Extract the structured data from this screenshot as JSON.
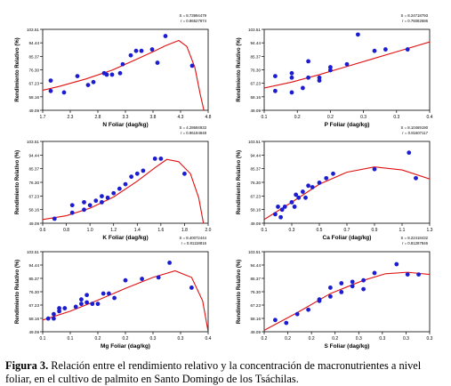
{
  "caption": {
    "label": "Figura 3.",
    "text": " Relación entre el rendimiento relativo y la concentración de macronutrientes a nivel foliar, en el cultivo de palmito en Santo Domingo de los Tsáchilas."
  },
  "colors": {
    "points": "#1c1cd0",
    "curve": "#e01010",
    "axes": "#000000"
  },
  "chart_data": [
    {
      "type": "scatter",
      "xlabel": "N Foliar (dag/kg)",
      "ylabel": "Rendimiento Relativo (%)",
      "stats": [
        "S = 8.73994479",
        "r = 0.86527874"
      ],
      "xlim": [
        1.7,
        4.8
      ],
      "xticks": [
        "1.7",
        "2.3",
        "2.8",
        "3.3",
        "3.8",
        "4.3",
        "4.8"
      ],
      "ylim": [
        49.0,
        103.5
      ],
      "yticks": [
        "49.09",
        "58.16",
        "67.23",
        "76.30",
        "85.37",
        "94.44",
        "103.51"
      ],
      "points": [
        [
          1.85,
          62
        ],
        [
          1.85,
          69
        ],
        [
          2.1,
          61
        ],
        [
          2.35,
          72
        ],
        [
          2.55,
          66
        ],
        [
          2.65,
          68
        ],
        [
          2.85,
          74
        ],
        [
          2.9,
          73
        ],
        [
          3.0,
          73
        ],
        [
          3.15,
          74
        ],
        [
          3.2,
          80
        ],
        [
          3.35,
          86
        ],
        [
          3.45,
          89
        ],
        [
          3.55,
          89
        ],
        [
          3.75,
          90
        ],
        [
          3.85,
          81
        ],
        [
          4.0,
          99
        ],
        [
          4.5,
          79
        ]
      ],
      "curve": [
        [
          1.7,
          62.5
        ],
        [
          2.0,
          65
        ],
        [
          2.5,
          70
        ],
        [
          3.0,
          76
        ],
        [
          3.5,
          84
        ],
        [
          3.8,
          89
        ],
        [
          4.0,
          92.5
        ],
        [
          4.25,
          96
        ],
        [
          4.4,
          92
        ],
        [
          4.55,
          78
        ],
        [
          4.65,
          60
        ],
        [
          4.72,
          49
        ]
      ]
    },
    {
      "type": "scatter",
      "xlabel": "P Foliar (dag/kg)",
      "ylabel": "Rendimiento Relativo (%)",
      "stats": [
        "S = 8.24718793",
        "r = 0.76082686"
      ],
      "xlim": [
        0.1,
        0.4
      ],
      "xticks": [
        "0.1",
        "0.2",
        "0.2",
        "0.3",
        "0.3",
        "0.4"
      ],
      "ylim": [
        49.0,
        103.5
      ],
      "yticks": [
        "49.09",
        "58.16",
        "67.23",
        "76.30",
        "85.37",
        "94.44",
        "103.51"
      ],
      "points": [
        [
          0.12,
          62
        ],
        [
          0.12,
          72
        ],
        [
          0.15,
          61
        ],
        [
          0.15,
          71
        ],
        [
          0.15,
          74
        ],
        [
          0.17,
          64
        ],
        [
          0.18,
          82
        ],
        [
          0.18,
          71
        ],
        [
          0.2,
          69
        ],
        [
          0.2,
          71
        ],
        [
          0.22,
          78
        ],
        [
          0.22,
          76
        ],
        [
          0.25,
          80
        ],
        [
          0.27,
          100
        ],
        [
          0.3,
          89
        ],
        [
          0.32,
          90
        ],
        [
          0.36,
          90
        ]
      ],
      "curve": [
        [
          0.1,
          64
        ],
        [
          0.15,
          68
        ],
        [
          0.2,
          73
        ],
        [
          0.25,
          78.5
        ],
        [
          0.3,
          84
        ],
        [
          0.35,
          89.5
        ],
        [
          0.4,
          95
        ]
      ]
    },
    {
      "type": "scatter",
      "xlabel": "K Foliar (dag/kg)",
      "ylabel": "Rendimiento Relativo (%)",
      "stats": [
        "S = 4.28694933",
        "r = 0.96194948"
      ],
      "xlim": [
        0.6,
        2.0
      ],
      "xticks": [
        "0.6",
        "0.8",
        "1.0",
        "1.2",
        "1.4",
        "1.6",
        "1.8",
        "2.0"
      ],
      "ylim": [
        49.0,
        103.5
      ],
      "yticks": [
        "49.09",
        "58.16",
        "67.23",
        "76.30",
        "85.37",
        "94.44",
        "103.51"
      ],
      "points": [
        [
          0.7,
          52
        ],
        [
          0.85,
          56
        ],
        [
          0.85,
          61
        ],
        [
          0.95,
          58
        ],
        [
          0.95,
          63
        ],
        [
          1.0,
          61
        ],
        [
          1.05,
          64
        ],
        [
          1.1,
          63
        ],
        [
          1.1,
          67
        ],
        [
          1.15,
          66
        ],
        [
          1.2,
          69
        ],
        [
          1.25,
          72
        ],
        [
          1.3,
          75
        ],
        [
          1.35,
          80
        ],
        [
          1.4,
          82
        ],
        [
          1.45,
          84
        ],
        [
          1.55,
          92
        ],
        [
          1.6,
          92
        ],
        [
          1.8,
          82
        ]
      ],
      "curve": [
        [
          0.6,
          51.5
        ],
        [
          0.8,
          54
        ],
        [
          1.0,
          59
        ],
        [
          1.2,
          66.5
        ],
        [
          1.4,
          77
        ],
        [
          1.55,
          86
        ],
        [
          1.65,
          91.5
        ],
        [
          1.75,
          90
        ],
        [
          1.85,
          82
        ],
        [
          1.92,
          66
        ],
        [
          1.96,
          49
        ]
      ]
    },
    {
      "type": "scatter",
      "xlabel": "Ca Foliar (dag/kg)",
      "ylabel": "Rendimiento Relativo (%)",
      "stats": [
        "S = 8.10469190",
        "r = 0.81607117"
      ],
      "xlim": [
        0.1,
        1.3
      ],
      "xticks": [
        "0.1",
        "0.3",
        "0.5",
        "0.7",
        "0.9",
        "1.1",
        "1.3"
      ],
      "ylim": [
        49.0,
        103.5
      ],
      "yticks": [
        "49.09",
        "58.16",
        "67.23",
        "76.30",
        "85.37",
        "94.44",
        "103.51"
      ],
      "points": [
        [
          0.18,
          55
        ],
        [
          0.2,
          60
        ],
        [
          0.22,
          53
        ],
        [
          0.23,
          58
        ],
        [
          0.25,
          60
        ],
        [
          0.3,
          63
        ],
        [
          0.32,
          60
        ],
        [
          0.33,
          68
        ],
        [
          0.35,
          66
        ],
        [
          0.38,
          70
        ],
        [
          0.4,
          66
        ],
        [
          0.42,
          74
        ],
        [
          0.45,
          73
        ],
        [
          0.5,
          76
        ],
        [
          0.55,
          79
        ],
        [
          0.6,
          82
        ],
        [
          0.9,
          85
        ],
        [
          1.15,
          96
        ],
        [
          1.2,
          79
        ]
      ],
      "curve": [
        [
          0.1,
          51.5
        ],
        [
          0.3,
          63
        ],
        [
          0.5,
          75
        ],
        [
          0.7,
          83
        ],
        [
          0.9,
          86.5
        ],
        [
          1.1,
          84.5
        ],
        [
          1.3,
          78.5
        ]
      ]
    },
    {
      "type": "scatter",
      "xlabel": "Mg Foliar (dag/kg)",
      "ylabel": "Rendimiento Relativo (%)",
      "stats": [
        "S = 8.40072444",
        "r = 0.81118816"
      ],
      "xlim": [
        0.1,
        0.4
      ],
      "xticks": [
        "0.1",
        "0.1",
        "0.2",
        "0.2",
        "0.3",
        "0.3",
        "0.4"
      ],
      "ylim": [
        49.0,
        103.5
      ],
      "yticks": [
        "49.09",
        "58.16",
        "67.23",
        "76.30",
        "85.37",
        "94.44",
        "103.51"
      ],
      "points": [
        [
          0.11,
          58
        ],
        [
          0.12,
          58
        ],
        [
          0.12,
          61
        ],
        [
          0.13,
          63
        ],
        [
          0.13,
          65
        ],
        [
          0.14,
          65
        ],
        [
          0.16,
          66
        ],
        [
          0.17,
          68
        ],
        [
          0.17,
          71
        ],
        [
          0.18,
          69
        ],
        [
          0.18,
          74
        ],
        [
          0.19,
          68
        ],
        [
          0.2,
          68
        ],
        [
          0.21,
          75
        ],
        [
          0.22,
          75
        ],
        [
          0.23,
          72
        ],
        [
          0.25,
          84
        ],
        [
          0.28,
          85
        ],
        [
          0.31,
          86
        ],
        [
          0.33,
          96
        ],
        [
          0.37,
          79
        ]
      ],
      "curve": [
        [
          0.1,
          57
        ],
        [
          0.15,
          63
        ],
        [
          0.2,
          70.5
        ],
        [
          0.25,
          78.5
        ],
        [
          0.3,
          86
        ],
        [
          0.34,
          90.5
        ],
        [
          0.37,
          86
        ],
        [
          0.39,
          70
        ],
        [
          0.4,
          49
        ]
      ]
    },
    {
      "type": "scatter",
      "xlabel": "S Foliar (dag/kg)",
      "ylabel": "Rendimiento Relativo (%)",
      "stats": [
        "S = 8.22418432",
        "r = 0.81287846"
      ],
      "xlim": [
        0.2,
        0.35
      ],
      "xticks": [
        "0.2",
        "0.2",
        "0.2",
        "0.2",
        "0.3",
        "0.3",
        "0.3",
        "0.3"
      ],
      "ylim": [
        49.0,
        103.5
      ],
      "yticks": [
        "49.09",
        "58.16",
        "67.23",
        "76.30",
        "85.37",
        "94.44",
        "103.51"
      ],
      "points": [
        [
          0.21,
          57
        ],
        [
          0.22,
          55
        ],
        [
          0.23,
          61
        ],
        [
          0.24,
          64
        ],
        [
          0.25,
          71
        ],
        [
          0.25,
          70
        ],
        [
          0.26,
          73
        ],
        [
          0.26,
          79
        ],
        [
          0.27,
          76
        ],
        [
          0.27,
          82
        ],
        [
          0.28,
          80
        ],
        [
          0.28,
          83
        ],
        [
          0.29,
          78
        ],
        [
          0.29,
          84
        ],
        [
          0.3,
          89
        ],
        [
          0.32,
          95
        ],
        [
          0.33,
          88
        ],
        [
          0.34,
          88
        ]
      ],
      "curve": [
        [
          0.2,
          50
        ],
        [
          0.23,
          62
        ],
        [
          0.26,
          75
        ],
        [
          0.29,
          84
        ],
        [
          0.31,
          88.5
        ],
        [
          0.33,
          89.5
        ],
        [
          0.35,
          88
        ]
      ]
    }
  ]
}
